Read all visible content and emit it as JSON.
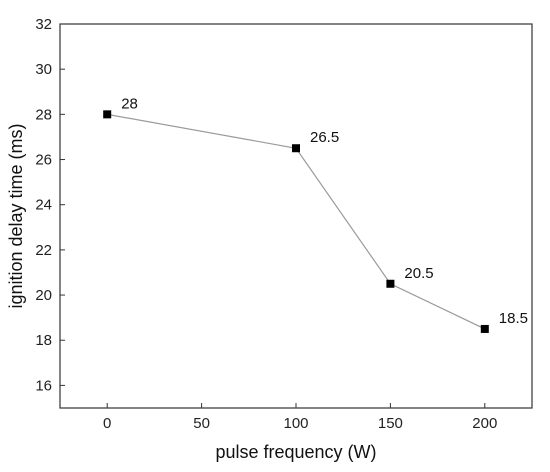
{
  "chart_data": {
    "type": "line",
    "title": "",
    "xlabel": "pulse frequency (W)",
    "ylabel": "ignition delay time (ms)",
    "xlim": [
      -25,
      225
    ],
    "ylim": [
      15,
      32
    ],
    "x_ticks": [
      0,
      50,
      100,
      150,
      200
    ],
    "y_ticks": [
      16,
      18,
      20,
      22,
      24,
      26,
      28,
      30,
      32
    ],
    "grid": false,
    "legend": "none",
    "series": [
      {
        "x": [
          0,
          100,
          150,
          200
        ],
        "y": [
          28,
          26.5,
          20.5,
          18.5
        ],
        "labels": [
          "28",
          "26.5",
          "20.5",
          "18.5"
        ],
        "marker": "square",
        "marker_color": "#000000",
        "line_color": "#9a9a9a"
      }
    ]
  }
}
